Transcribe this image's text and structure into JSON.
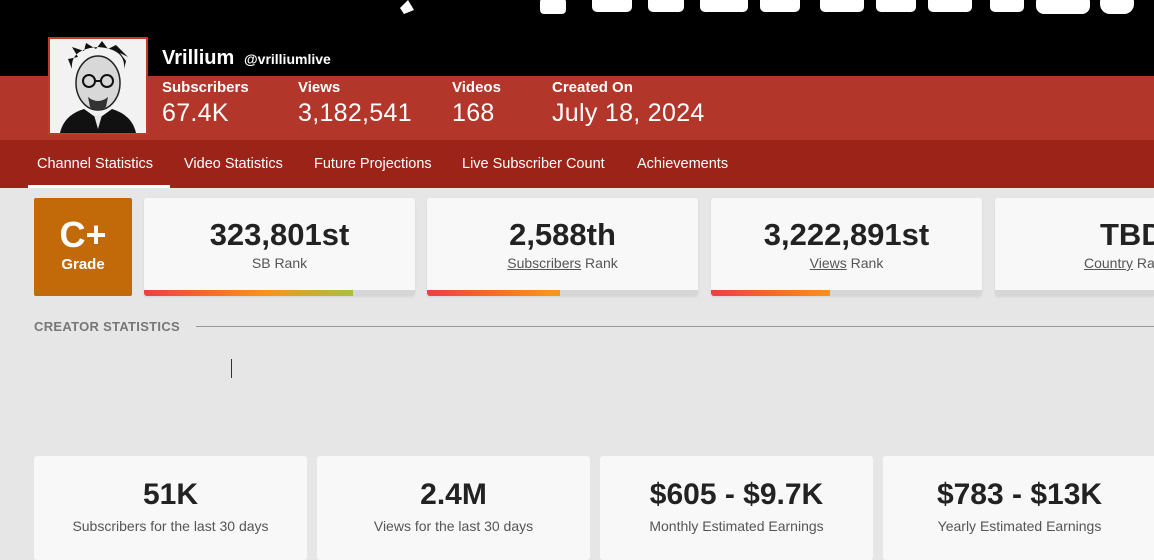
{
  "channel": {
    "name": "Vrillium",
    "handle": "@vrilliumlive"
  },
  "stats": [
    {
      "label": "Subscribers",
      "value": "67.4K"
    },
    {
      "label": "Views",
      "value": "3,182,541"
    },
    {
      "label": "Videos",
      "value": "168"
    },
    {
      "label": "Created On",
      "value": "July 18, 2024"
    }
  ],
  "tabs": [
    "Channel Statistics",
    "Video Statistics",
    "Future Projections",
    "Live Subscriber Count",
    "Achievements"
  ],
  "grade": {
    "value": "C+",
    "label": "Grade",
    "color": "#c26a0a"
  },
  "ranks": [
    {
      "value": "323,801st",
      "label_underlined": "",
      "label": "SB Rank",
      "bar_fill": 0.77
    },
    {
      "value": "2,588th",
      "label_underlined": "Subscribers",
      "label": " Rank",
      "bar_fill": 0.49
    },
    {
      "value": "3,222,891st",
      "label_underlined": "Views",
      "label": " Rank",
      "bar_fill": 0.44
    },
    {
      "value": "TBD",
      "label_underlined": "Country",
      "label": " Rank",
      "bar_fill": 0
    }
  ],
  "section": {
    "title": "CREATOR STATISTICS"
  },
  "creator_stats": [
    {
      "value": "51K",
      "label": "Subscribers for the last 30 days"
    },
    {
      "value": "2.4M",
      "label": "Views for the last 30 days"
    },
    {
      "value": "$605 - $9.7K",
      "label": "Monthly Estimated Earnings"
    },
    {
      "value": "$783 - $13K",
      "label": "Yearly Estimated Earnings"
    }
  ],
  "colors": {
    "banner": "#000000",
    "info_bar": "#b3362b",
    "tab_bar": "#9c2318",
    "progress_start": "#ef3e3e",
    "progress_mid": "#f7941d",
    "progress_end": "#a3c24a"
  }
}
